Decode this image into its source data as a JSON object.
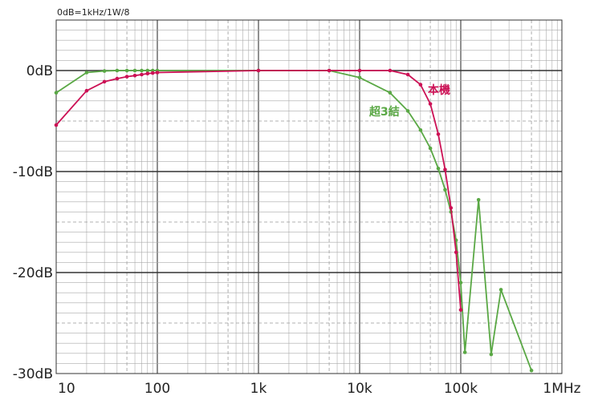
{
  "chart_data": {
    "type": "line",
    "title": "",
    "annotation": "0dB=1kHz/1W/8",
    "xscale": "log",
    "xlim": [
      10,
      1000000
    ],
    "ylim": [
      -30,
      5
    ],
    "x_tick_labels": [
      "10",
      "100",
      "1k",
      "10k",
      "100k",
      "1MHz"
    ],
    "y_tick_labels": [
      "0dB",
      "-10dB",
      "-20dB",
      "-30dB"
    ],
    "grid": true,
    "legend": "inline labels",
    "series": [
      {
        "name": "本機",
        "color": "#cc1155",
        "points": [
          [
            10,
            -5.4
          ],
          [
            20,
            -2.0
          ],
          [
            30,
            -1.1
          ],
          [
            40,
            -0.8
          ],
          [
            50,
            -0.6
          ],
          [
            60,
            -0.5
          ],
          [
            70,
            -0.4
          ],
          [
            80,
            -0.3
          ],
          [
            90,
            -0.25
          ],
          [
            100,
            -0.2
          ],
          [
            1000,
            0
          ],
          [
            5000,
            0
          ],
          [
            10000,
            0
          ],
          [
            20000,
            0
          ],
          [
            30000,
            -0.4
          ],
          [
            40000,
            -1.4
          ],
          [
            50000,
            -3.3
          ],
          [
            60000,
            -6.3
          ],
          [
            70000,
            -9.8
          ],
          [
            80000,
            -13.6
          ],
          [
            90000,
            -18.0
          ],
          [
            100000,
            -23.7
          ]
        ]
      },
      {
        "name": "超3結",
        "color": "#5aa845",
        "points": [
          [
            10,
            -2.2
          ],
          [
            20,
            -0.2
          ],
          [
            30,
            -0.05
          ],
          [
            40,
            0
          ],
          [
            50,
            0
          ],
          [
            60,
            0
          ],
          [
            70,
            0
          ],
          [
            80,
            0
          ],
          [
            90,
            0
          ],
          [
            100,
            0
          ],
          [
            1000,
            0
          ],
          [
            5000,
            0
          ],
          [
            10000,
            -0.7
          ],
          [
            20000,
            -2.2
          ],
          [
            30000,
            -4.0
          ],
          [
            40000,
            -5.9
          ],
          [
            50000,
            -7.7
          ],
          [
            60000,
            -9.7
          ],
          [
            70000,
            -11.8
          ],
          [
            80000,
            -14.0
          ],
          [
            90000,
            -16.8
          ],
          [
            100000,
            -21.0
          ],
          [
            110000,
            -27.9
          ],
          [
            150000,
            -12.8
          ],
          [
            200000,
            -28.1
          ],
          [
            250000,
            -21.7
          ],
          [
            500000,
            -29.7
          ]
        ]
      }
    ]
  }
}
